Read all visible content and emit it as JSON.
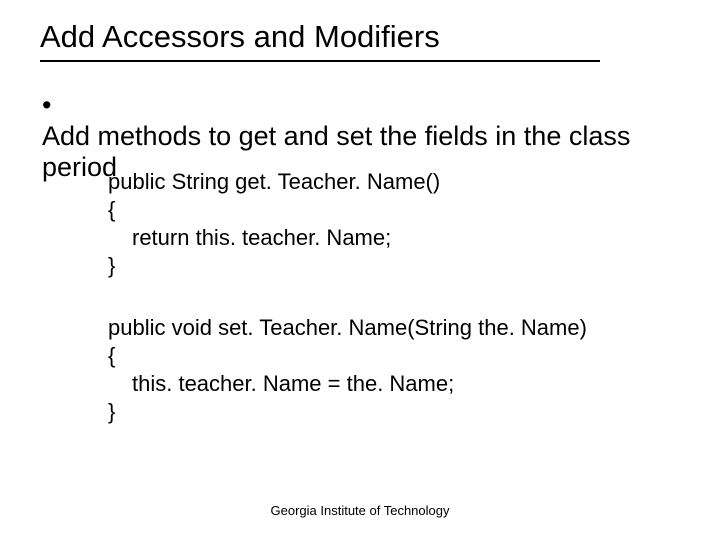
{
  "title": "Add Accessors and Modifiers",
  "bullet": {
    "marker": "•",
    "text": "Add methods to get and set the fields in the class period"
  },
  "code1": {
    "l1": "public String get. Teacher. Name()",
    "l2": "{",
    "l3": "return this. teacher. Name;",
    "l4": "}"
  },
  "code2": {
    "l1": "public void set. Teacher. Name(String the. Name)",
    "l2": "{",
    "l3": "this. teacher. Name = the. Name;",
    "l4": "}"
  },
  "footer": "Georgia Institute of Technology",
  "colors": {
    "background": "#ffffff",
    "text": "#000000",
    "underline": "#000000"
  },
  "fonts": {
    "title_size_pt": 31,
    "body_size_pt": 27,
    "code_size_pt": 22,
    "footer_size_pt": 13
  }
}
